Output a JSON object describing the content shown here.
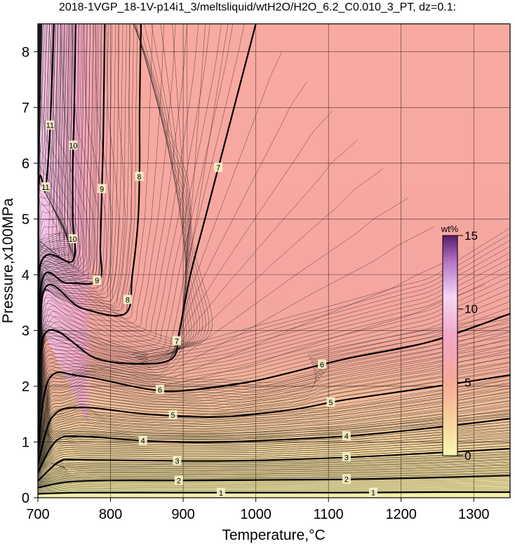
{
  "chart_data": {
    "type": "contour",
    "title": "2018-1VGP_18-1V-p14i1_3/meltsliquid/wtH2O/H2O_6.2_C0.010_3_PT, dz=0.1:",
    "xlabel": "Temperature,°C",
    "ylabel": "Pressure,x100MPa",
    "xlim": [
      700,
      1350
    ],
    "ylim": [
      0,
      8.5
    ],
    "xticks": [
      700,
      800,
      900,
      1000,
      1100,
      1200,
      1300
    ],
    "yticks": [
      0,
      1,
      2,
      3,
      4,
      5,
      6,
      7,
      8
    ],
    "grid": true,
    "colorbar": {
      "title": "wt%",
      "range": [
        0,
        15
      ],
      "ticks": [
        0,
        5,
        10,
        15
      ],
      "colors": [
        "#f7f7b0",
        "#f9cd9a",
        "#f6a89a",
        "#f3a7c8",
        "#f6d6f4",
        "#b676c4",
        "#5a1a6a"
      ]
    },
    "contours": [
      {
        "level": 1,
        "label": "1",
        "points": [
          [
            700,
            0.07
          ],
          [
            760,
            0.09
          ],
          [
            900,
            0.09
          ],
          [
            1000,
            0.09
          ],
          [
            1120,
            0.09
          ],
          [
            1250,
            0.1
          ],
          [
            1350,
            0.1
          ]
        ]
      },
      {
        "level": 2,
        "label": "2",
        "points": [
          [
            700,
            0.18
          ],
          [
            740,
            0.28
          ],
          [
            800,
            0.31
          ],
          [
            900,
            0.31
          ],
          [
            1000,
            0.32
          ],
          [
            1120,
            0.33
          ],
          [
            1240,
            0.36
          ],
          [
            1350,
            0.4
          ]
        ]
      },
      {
        "level": 3,
        "label": "3",
        "points": [
          [
            700,
            0.3
          ],
          [
            730,
            0.65
          ],
          [
            760,
            0.68
          ],
          [
            900,
            0.66
          ],
          [
            1000,
            0.67
          ],
          [
            1120,
            0.72
          ],
          [
            1240,
            0.8
          ],
          [
            1350,
            0.88
          ]
        ]
      },
      {
        "level": 4,
        "label": "4",
        "points": [
          [
            700,
            0.45
          ],
          [
            725,
            1.02
          ],
          [
            760,
            1.1
          ],
          [
            850,
            1.02
          ],
          [
            950,
            1.0
          ],
          [
            1120,
            1.1
          ],
          [
            1240,
            1.25
          ],
          [
            1350,
            1.42
          ]
        ]
      },
      {
        "level": 5,
        "label": "5",
        "points": [
          [
            700,
            0.6
          ],
          [
            720,
            1.45
          ],
          [
            760,
            1.62
          ],
          [
            850,
            1.5
          ],
          [
            950,
            1.45
          ],
          [
            1050,
            1.58
          ],
          [
            1120,
            1.75
          ],
          [
            1240,
            1.98
          ],
          [
            1350,
            2.2
          ]
        ]
      },
      {
        "level": 6,
        "label": "6",
        "points": [
          [
            700,
            0.8
          ],
          [
            715,
            2.12
          ],
          [
            760,
            2.18
          ],
          [
            850,
            1.95
          ],
          [
            900,
            1.92
          ],
          [
            1000,
            2.1
          ],
          [
            1120,
            2.48
          ],
          [
            1240,
            2.8
          ],
          [
            1350,
            3.3
          ]
        ]
      },
      {
        "level": 7,
        "label": "7",
        "points": [
          [
            700,
            0.95
          ],
          [
            710,
            2.95
          ],
          [
            780,
            2.5
          ],
          [
            840,
            2.4
          ],
          [
            885,
            2.5
          ],
          [
            895,
            3.0
          ],
          [
            910,
            4.0
          ],
          [
            930,
            5.0
          ],
          [
            950,
            6.0
          ],
          [
            970,
            7.0
          ],
          [
            990,
            8.0
          ],
          [
            1000,
            8.5
          ]
        ]
      },
      {
        "level": 8,
        "label": "8",
        "points": [
          [
            700,
            1.1
          ],
          [
            708,
            3.7
          ],
          [
            760,
            3.4
          ],
          [
            820,
            3.3
          ],
          [
            830,
            4.0
          ],
          [
            838,
            5.0
          ],
          [
            840,
            6.0
          ],
          [
            840,
            7.0
          ],
          [
            842,
            8.5
          ]
        ]
      },
      {
        "level": 9,
        "label": "9",
        "points": [
          [
            700,
            1.2
          ],
          [
            705,
            3.85
          ],
          [
            740,
            3.85
          ],
          [
            784,
            3.9
          ],
          [
            786,
            4.5
          ],
          [
            788,
            5.5
          ],
          [
            790,
            6.5
          ],
          [
            792,
            8.5
          ]
        ]
      },
      {
        "level": 10,
        "label": "10",
        "points": [
          [
            700,
            1.3
          ],
          [
            703,
            4.15
          ],
          [
            748,
            4.25
          ],
          [
            748,
            5.0
          ],
          [
            748,
            6.0
          ],
          [
            750,
            7.0
          ],
          [
            752,
            8.5
          ]
        ]
      },
      {
        "level": 11,
        "label": "11",
        "points": [
          [
            700,
            1.4
          ],
          [
            701,
            5.5
          ],
          [
            710,
            5.5
          ],
          [
            715,
            6.2
          ],
          [
            718,
            7.0
          ],
          [
            722,
            8.5
          ]
        ]
      }
    ]
  }
}
